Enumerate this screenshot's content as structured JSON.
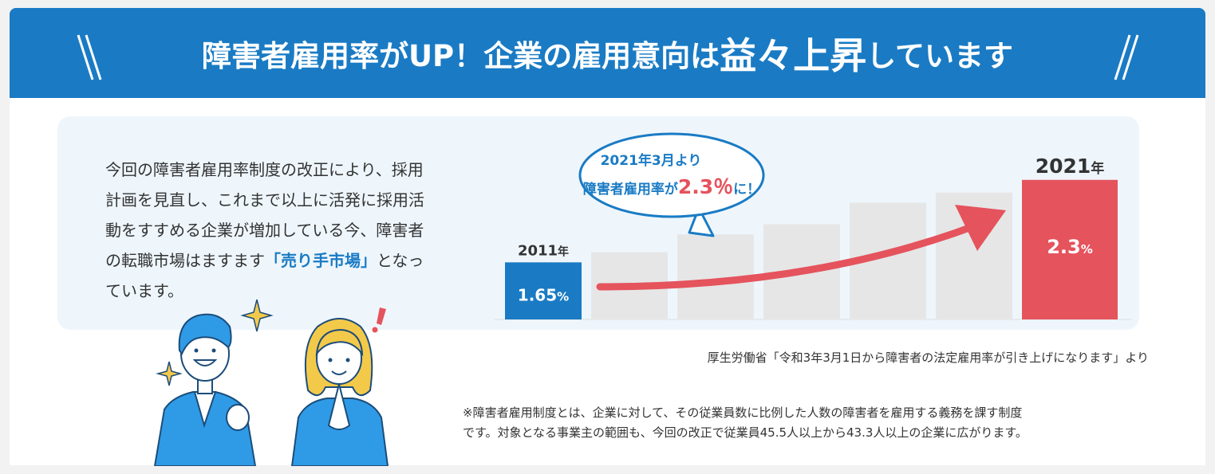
{
  "header": {
    "title_before": "障害者雇用率がUP！企業の雇用意向は",
    "title_emphasis": "益々上昇",
    "title_after": "しています"
  },
  "intro": {
    "line1": "今回の障害者雇用率制度の改正により、採用",
    "line2": "計画を見直し、これまで以上に活発に採用活",
    "line3": "動をすすめる企業が増加している今、障害者",
    "line4_before": "の転職市場はますます",
    "line4_highlight": "「売り手市場」",
    "line4_after": "となっ",
    "line5": "ています。"
  },
  "chart_data": {
    "type": "bar",
    "categories": [
      "2011",
      "",
      "",
      "",
      "",
      "",
      "2021"
    ],
    "values": [
      1.65,
      1.73,
      1.87,
      1.95,
      2.12,
      2.2,
      2.3
    ],
    "value_labels": [
      "1.65",
      "",
      "",
      "",
      "",
      "",
      "2.3"
    ],
    "value_unit": "%",
    "year_unit": "年",
    "ylim": [
      1.2,
      2.33
    ],
    "highlight_colors": {
      "first": "#1a7bc4",
      "last": "#e5535d",
      "other": "#e6e6e6"
    },
    "arrow_color": "#e5535d",
    "callout": {
      "line1": "2021年3月より",
      "line2_before": "障害者雇用率が",
      "line2_value": "2.3％",
      "line2_after": "に！"
    }
  },
  "source_text": "厚生労働省「令和3年3月1日から障害者の法定雇用率が引き上げになります」より",
  "note": {
    "line1": "※障害者雇用制度とは、企業に対して、その従業員数に比例した人数の障害者を雇用する義務を課す制度",
    "line2": "です。対象となる事業主の範囲も、今回の改正で従業員45.5人以上から43.3人以上の企業に広がります。"
  },
  "colors": {
    "brand_blue": "#1a7bc4",
    "accent_red": "#e5535d",
    "panel_bg": "#eef6fc"
  },
  "illustration": {
    "icon": "happy-people-illustration"
  }
}
